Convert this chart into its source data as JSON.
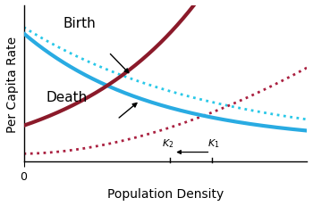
{
  "title": "",
  "xlabel": "Population Density",
  "ylabel": "Per Capita Rate",
  "xlim": [
    0,
    1.0
  ],
  "ylim": [
    0,
    1.0
  ],
  "birth_solid_color": "#29ABE2",
  "birth_dotted_color": "#29C8E8",
  "death_solid_color": "#8B1A2A",
  "death_dotted_color": "#AA2040",
  "background_color": "#FFFFFF",
  "linewidth_solid": 3.0,
  "linewidth_dotted": 2.0
}
